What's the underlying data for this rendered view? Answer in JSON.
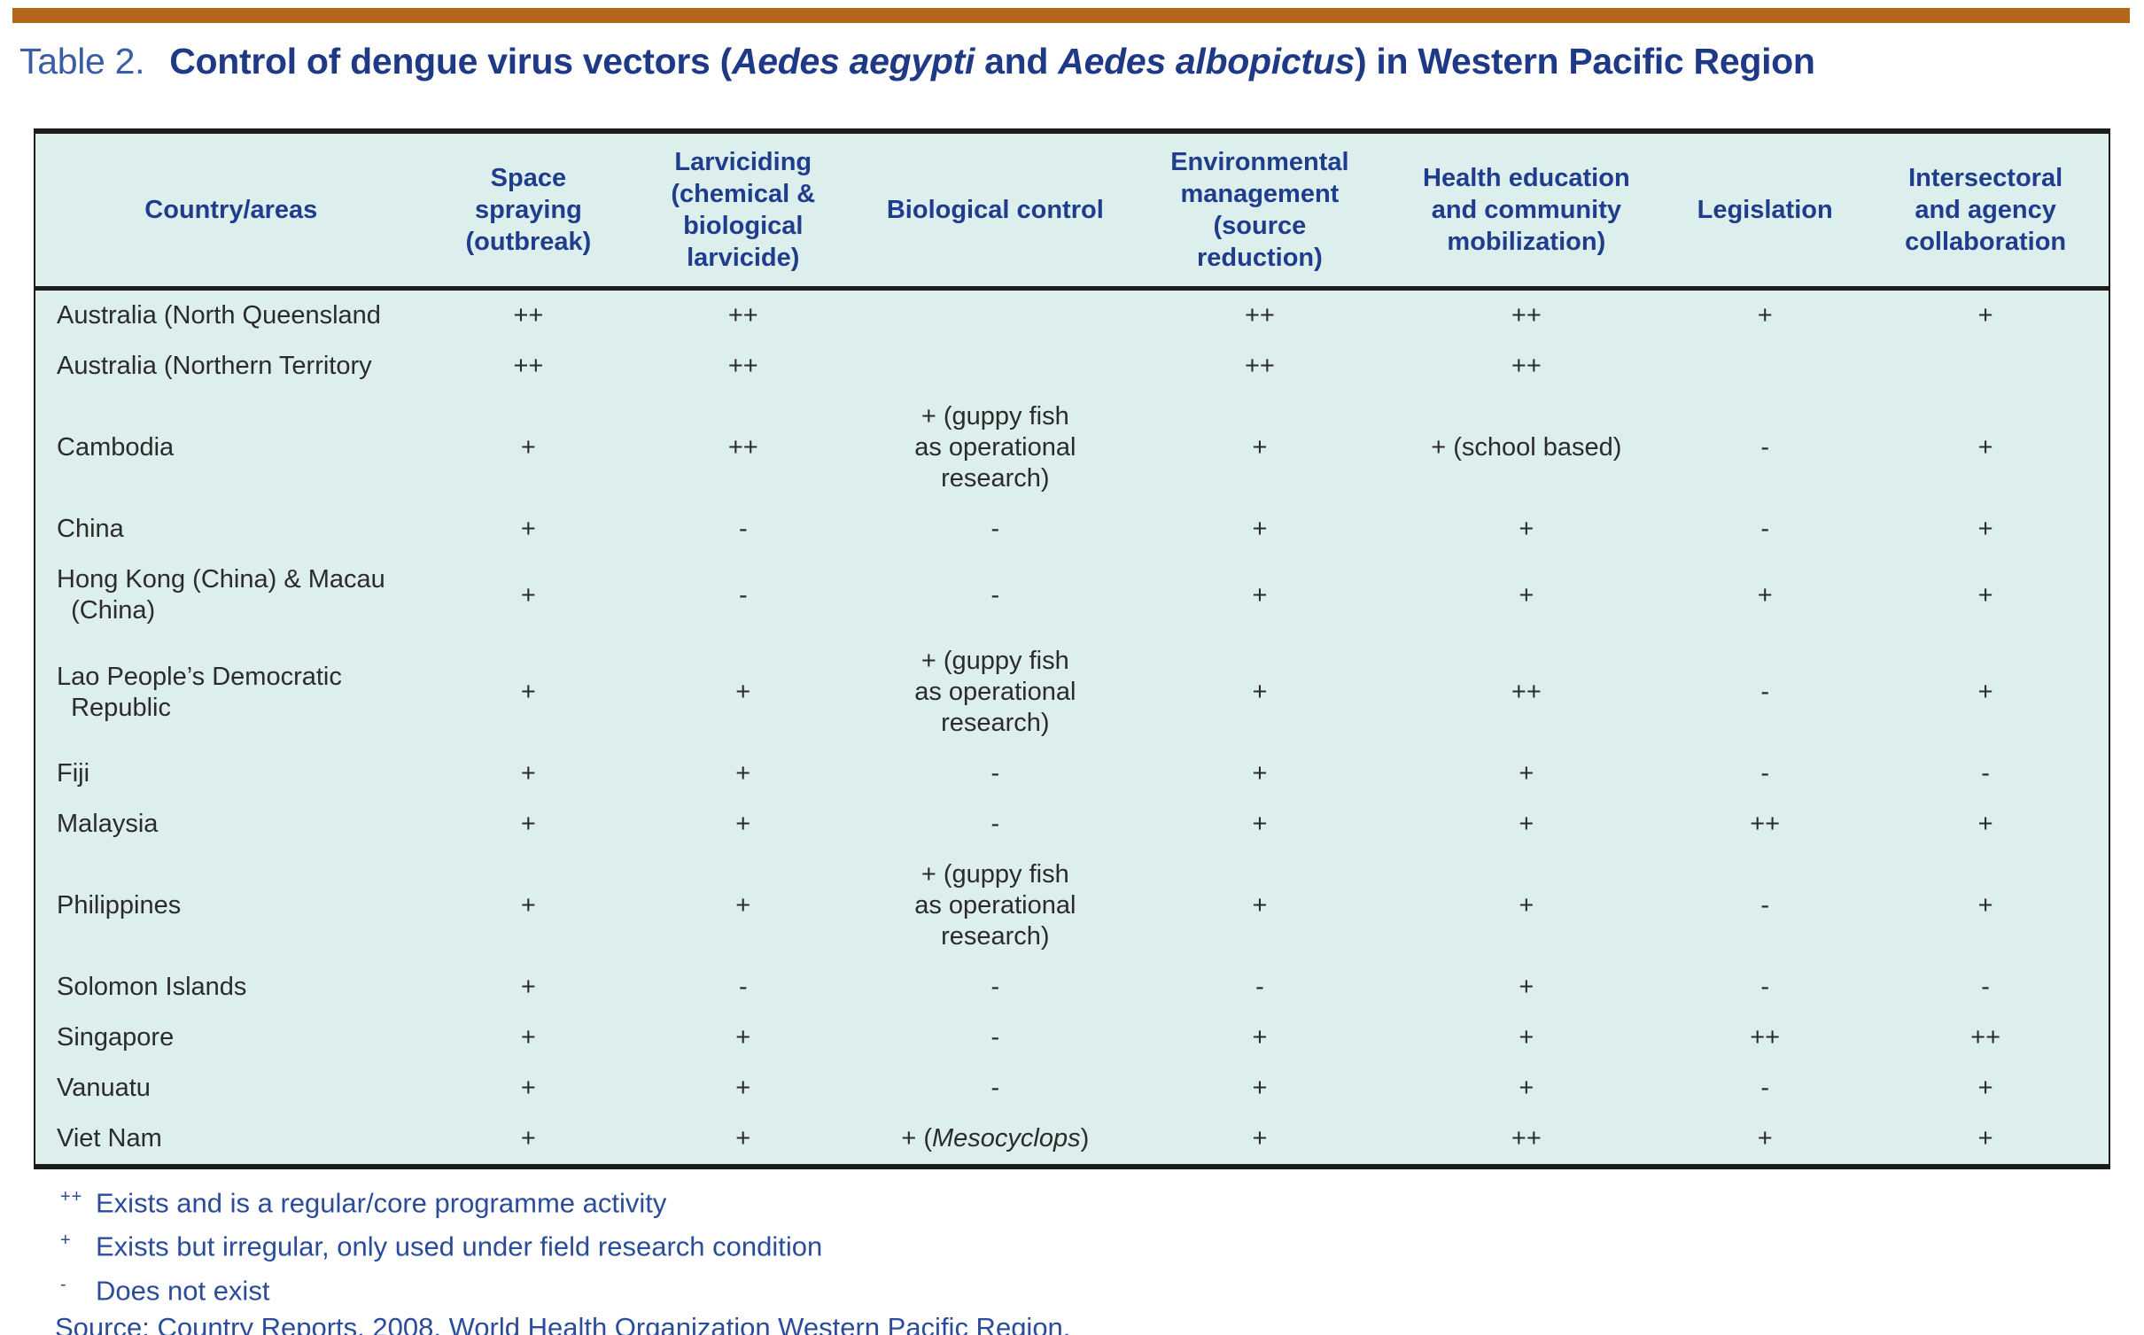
{
  "page": {
    "accent_bar_color": "#b4661b",
    "background": "#ffffff"
  },
  "title": {
    "label": "Table 2.",
    "text": "Control of dengue virus vectors (*Aedes aegypti* and *Aedes albopictus*) in Western Pacific Region",
    "label_color": "#3a5da8",
    "text_color": "#1e3a86"
  },
  "table": {
    "background_color": "#ddefec",
    "border_color": "#1c1c1c",
    "header_text_color": "#1f3d8c",
    "body_text_color": "#2b2b2b",
    "columns": [
      "Country/areas",
      "Space\nspraying\n(outbreak)",
      "Larviciding\n(chemical &\nbiological\nlarvicide)",
      "Biological control",
      "Environmental\nmanagement\n(source\nreduction)",
      "Health education\nand community\nmobilization)",
      "Legislation",
      "Intersectoral\nand agency\ncollaboration"
    ],
    "rows": [
      {
        "country": "Australia (North Queensland",
        "cells": [
          "++",
          "++",
          "",
          "++",
          "++",
          "+",
          "+"
        ]
      },
      {
        "country": "Australia (Northern Territory",
        "cells": [
          "++",
          "++",
          "",
          "++",
          "++",
          "",
          ""
        ]
      },
      {
        "country": "Cambodia",
        "cells": [
          "+",
          "++",
          "+ (guppy fish\nas operational\nresearch)",
          "+",
          "+ (school based)",
          "-",
          "+"
        ]
      },
      {
        "country": "China",
        "cells": [
          "+",
          "-",
          "-",
          "+",
          "+",
          "-",
          "+"
        ]
      },
      {
        "country": "Hong Kong (China) & Macau\n  (China)",
        "cells": [
          "+",
          "-",
          "-",
          "+",
          "+",
          "+",
          "+"
        ]
      },
      {
        "country": "Lao People’s Democratic\n  Republic",
        "cells": [
          "+",
          "+",
          "+ (guppy fish\nas operational\nresearch)",
          "+",
          "++",
          "-",
          "+"
        ]
      },
      {
        "country": "Fiji",
        "cells": [
          "+",
          "+",
          "-",
          "+",
          "+",
          "-",
          "-"
        ]
      },
      {
        "country": "Malaysia",
        "cells": [
          "+",
          "+",
          "-",
          "+",
          "+",
          "++",
          "+"
        ]
      },
      {
        "country": "Philippines",
        "cells": [
          "+",
          "+",
          "+ (guppy fish\nas operational\nresearch)",
          "+",
          "+",
          "-",
          "+"
        ]
      },
      {
        "country": "Solomon Islands",
        "cells": [
          "+",
          "-",
          "-",
          "-",
          "+",
          "-",
          "-"
        ]
      },
      {
        "country": "Singapore",
        "cells": [
          "+",
          "+",
          "-",
          "+",
          "+",
          "++",
          "++"
        ]
      },
      {
        "country": "Vanuatu",
        "cells": [
          "+",
          "+",
          "-",
          "+",
          "+",
          "-",
          "+"
        ]
      },
      {
        "country": "Viet Nam",
        "cells": [
          "+",
          "+",
          "+ (*Mesocyclops*)",
          "+",
          "++",
          "+",
          "+"
        ]
      }
    ]
  },
  "legend": [
    {
      "symbol": "++",
      "text": "Exists and is a regular/core programme activity"
    },
    {
      "symbol": "+",
      "text": "Exists but irregular, only used under field research condition"
    },
    {
      "symbol": "-",
      "text": "Does not exist"
    }
  ],
  "legend_color": "#2b4b9b",
  "source": "Source: Country Reports, 2008, World Health Organization Western Pacific Region."
}
